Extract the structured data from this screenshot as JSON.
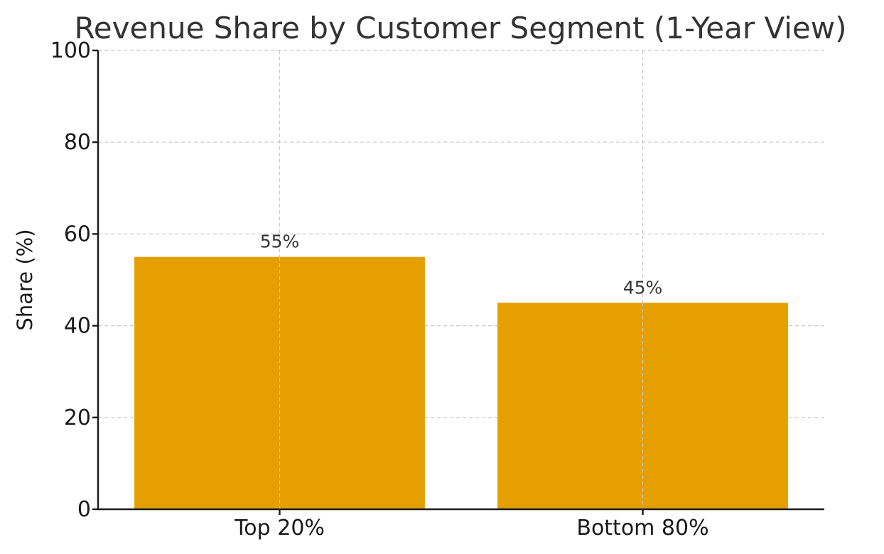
{
  "chart_data": {
    "type": "bar",
    "title": "Revenue Share by Customer Segment (1-Year View)",
    "xlabel": "",
    "ylabel": "Share (%)",
    "categories": [
      "Top 20%",
      "Bottom 80%"
    ],
    "values": [
      55,
      45
    ],
    "data_labels": [
      "55%",
      "45%"
    ],
    "ylim": [
      0,
      100
    ],
    "yticks": [
      0,
      20,
      40,
      60,
      80,
      100
    ],
    "bar_color": "#E69F00",
    "grid": true,
    "legend": "none"
  }
}
